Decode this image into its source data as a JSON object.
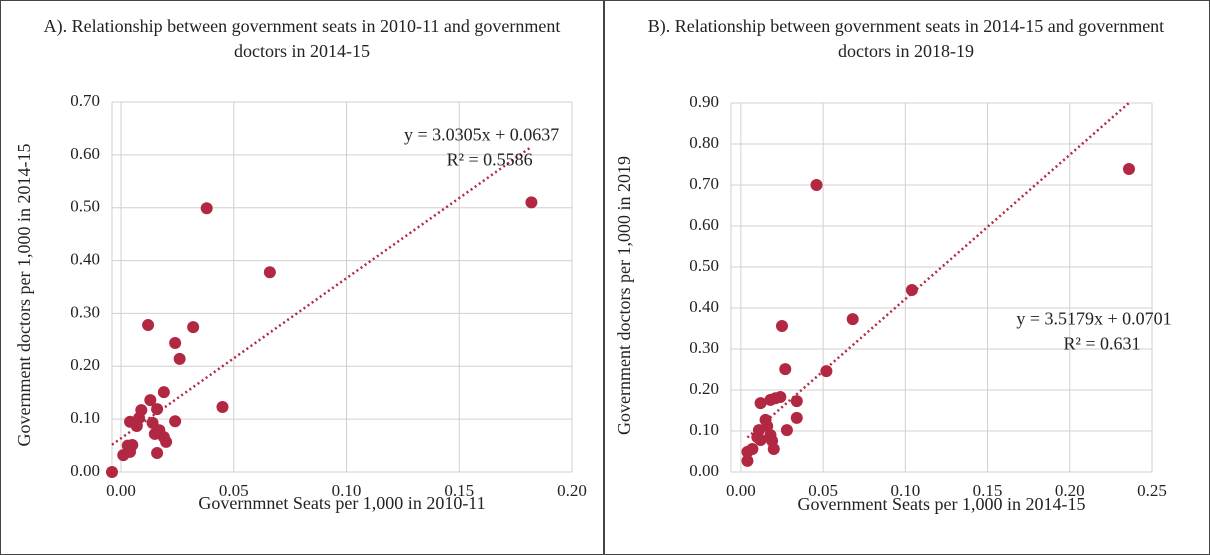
{
  "chart_data": [
    {
      "type": "scatter",
      "title": "A). Relationship between government seats in 2010-11 and government doctors in 2014-15",
      "x_label": "Governmnet Seats per 1,000 in 2010-11",
      "y_label": "Government doctors per 1,000 in 2014-15",
      "color": "#b22742",
      "grid": true,
      "xlim": [
        -0.004,
        0.2
      ],
      "ylim": [
        0,
        0.7
      ],
      "xticks": [
        {
          "value": 0,
          "label": "0.00"
        },
        {
          "value": 0.05,
          "label": "0.05"
        },
        {
          "value": 0.1,
          "label": "0.10"
        },
        {
          "value": 0.15,
          "label": "0.15"
        },
        {
          "value": 0.2,
          "label": "0.20"
        }
      ],
      "yticks": [
        {
          "value": 0,
          "label": "0.00"
        },
        {
          "value": 0.1,
          "label": "0.10"
        },
        {
          "value": 0.2,
          "label": "0.20"
        },
        {
          "value": 0.3,
          "label": "0.30"
        },
        {
          "value": 0.4,
          "label": "0.40"
        },
        {
          "value": 0.5,
          "label": "0.50"
        },
        {
          "value": 0.6,
          "label": "0.60"
        },
        {
          "value": 0.7,
          "label": "0.70"
        }
      ],
      "x": [
        -0.004,
        0.001,
        0.003,
        0.004,
        0.004,
        0.005,
        0.007,
        0.008,
        0.009,
        0.012,
        0.013,
        0.014,
        0.015,
        0.016,
        0.016,
        0.017,
        0.019,
        0.019,
        0.02,
        0.024,
        0.024,
        0.026,
        0.032,
        0.038,
        0.045,
        0.066,
        0.182
      ],
      "y": [
        0,
        0.032,
        0.05,
        0.038,
        0.095,
        0.051,
        0.087,
        0.102,
        0.117,
        0.278,
        0.136,
        0.093,
        0.072,
        0.119,
        0.036,
        0.079,
        0.151,
        0.066,
        0.057,
        0.096,
        0.244,
        0.214,
        0.274,
        0.499,
        0.123,
        0.378,
        0.51
      ],
      "trendline": {
        "equation": "y = 3.0305x + 0.0637",
        "r2": "R² = 0.5586",
        "slope": 3.0305,
        "intercept": 0.0637
      }
    },
    {
      "type": "scatter",
      "title": "B). Relationship between government seats in 2014-15 and government doctors in 2018-19",
      "x_label": "Government Seats per 1,000 in 2014-15",
      "y_label": "Government doctors per 1,000 in 2019",
      "color": "#b22742",
      "grid": true,
      "xlim": [
        -0.006,
        0.25
      ],
      "ylim": [
        0,
        0.9
      ],
      "xticks": [
        {
          "value": 0,
          "label": "0.00"
        },
        {
          "value": 0.05,
          "label": "0.05"
        },
        {
          "value": 0.1,
          "label": "0.10"
        },
        {
          "value": 0.15,
          "label": "0.15"
        },
        {
          "value": 0.2,
          "label": "0.20"
        },
        {
          "value": 0.25,
          "label": "0.25"
        }
      ],
      "yticks": [
        {
          "value": 0,
          "label": "0.00"
        },
        {
          "value": 0.1,
          "label": "0.10"
        },
        {
          "value": 0.2,
          "label": "0.20"
        },
        {
          "value": 0.3,
          "label": "0.30"
        },
        {
          "value": 0.4,
          "label": "0.40"
        },
        {
          "value": 0.5,
          "label": "0.50"
        },
        {
          "value": 0.6,
          "label": "0.60"
        },
        {
          "value": 0.7,
          "label": "0.70"
        },
        {
          "value": 0.8,
          "label": "0.80"
        },
        {
          "value": 0.9,
          "label": "0.90"
        }
      ],
      "x": [
        0.004,
        0.004,
        0.007,
        0.01,
        0.011,
        0.012,
        0.012,
        0.015,
        0.016,
        0.018,
        0.018,
        0.019,
        0.02,
        0.021,
        0.024,
        0.025,
        0.027,
        0.028,
        0.034,
        0.034,
        0.046,
        0.052,
        0.068,
        0.104,
        0.236
      ],
      "y": [
        0.027,
        0.049,
        0.056,
        0.085,
        0.102,
        0.078,
        0.168,
        0.127,
        0.112,
        0.176,
        0.09,
        0.076,
        0.056,
        0.18,
        0.183,
        0.356,
        0.251,
        0.102,
        0.132,
        0.173,
        0.7,
        0.246,
        0.373,
        0.444,
        0.739
      ],
      "trendline": {
        "equation": "y = 3.5179x + 0.0701",
        "r2": "R² = 0.631",
        "slope": 3.5179,
        "intercept": 0.0701
      }
    }
  ]
}
